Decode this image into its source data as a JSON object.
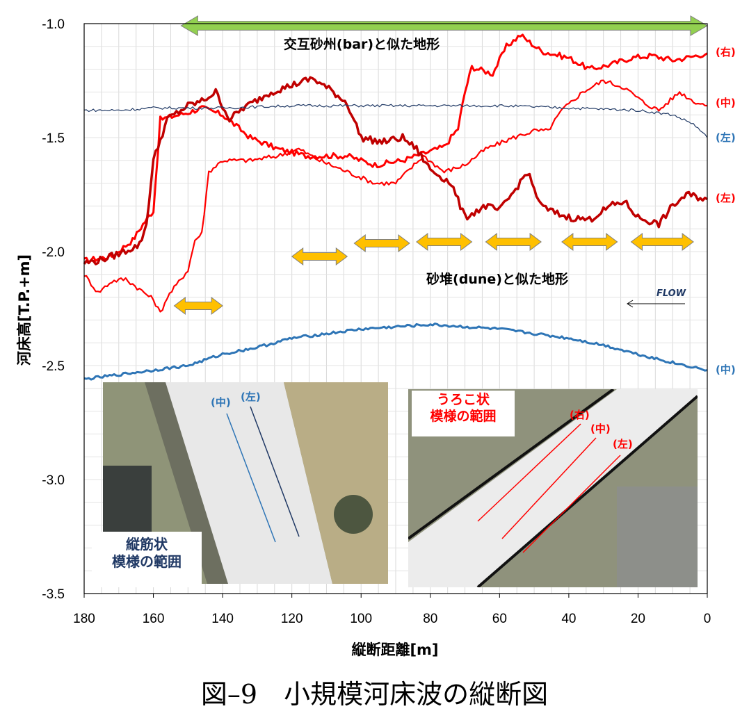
{
  "chart_data": {
    "type": "line",
    "xlabel": "縦断距離[m]",
    "ylabel": "河床高[T.P.+m]",
    "xlim": [
      180,
      0
    ],
    "ylim": [
      -3.5,
      -1.0
    ],
    "x_ticks": [
      "180",
      "160",
      "140",
      "120",
      "100",
      "80",
      "60",
      "40",
      "20",
      "0"
    ],
    "y_ticks": [
      "-1.0",
      "-1.5",
      "-2.0",
      "-2.5",
      "-3.0",
      "-3.5"
    ],
    "grid": "vertical and horizontal gridlines",
    "series": [
      {
        "name": "(右)",
        "color": "#ff0000",
        "points": [
          [
            180,
            -2.04
          ],
          [
            172,
            -2.02
          ],
          [
            166,
            -1.95
          ],
          [
            163,
            -1.88
          ],
          [
            160,
            -1.82
          ],
          [
            158,
            -1.42
          ],
          [
            150,
            -1.39
          ],
          [
            146,
            -1.37
          ],
          [
            140,
            -1.4
          ],
          [
            136,
            -1.45
          ],
          [
            132,
            -1.5
          ],
          [
            124,
            -1.55
          ],
          [
            116,
            -1.58
          ],
          [
            110,
            -1.58
          ],
          [
            104,
            -1.58
          ],
          [
            96,
            -1.62
          ],
          [
            88,
            -1.6
          ],
          [
            84,
            -1.58
          ],
          [
            80,
            -1.56
          ],
          [
            76,
            -1.54
          ],
          [
            72,
            -1.46
          ],
          [
            70,
            -1.3
          ],
          [
            68,
            -1.19
          ],
          [
            62,
            -1.22
          ],
          [
            58,
            -1.1
          ],
          [
            54,
            -1.05
          ],
          [
            48,
            -1.12
          ],
          [
            40,
            -1.15
          ],
          [
            34,
            -1.2
          ],
          [
            28,
            -1.18
          ],
          [
            22,
            -1.15
          ],
          [
            16,
            -1.14
          ],
          [
            10,
            -1.16
          ],
          [
            6,
            -1.15
          ],
          [
            0,
            -1.13
          ]
        ]
      },
      {
        "name": "(中)",
        "color": "#ff0000",
        "points": [
          [
            180,
            -2.1
          ],
          [
            176,
            -2.18
          ],
          [
            172,
            -2.13
          ],
          [
            168,
            -2.12
          ],
          [
            160,
            -2.21
          ],
          [
            158,
            -2.27
          ],
          [
            156,
            -2.2
          ],
          [
            150,
            -2.08
          ],
          [
            148,
            -1.95
          ],
          [
            146,
            -1.92
          ],
          [
            144,
            -1.65
          ],
          [
            140,
            -1.6
          ],
          [
            132,
            -1.6
          ],
          [
            124,
            -1.58
          ],
          [
            118,
            -1.55
          ],
          [
            112,
            -1.6
          ],
          [
            104,
            -1.65
          ],
          [
            96,
            -1.7
          ],
          [
            90,
            -1.7
          ],
          [
            82,
            -1.58
          ],
          [
            76,
            -1.65
          ],
          [
            70,
            -1.62
          ],
          [
            64,
            -1.55
          ],
          [
            56,
            -1.5
          ],
          [
            50,
            -1.47
          ],
          [
            46,
            -1.47
          ],
          [
            42,
            -1.38
          ],
          [
            36,
            -1.3
          ],
          [
            30,
            -1.25
          ],
          [
            24,
            -1.28
          ],
          [
            18,
            -1.35
          ],
          [
            14,
            -1.38
          ],
          [
            8,
            -1.3
          ],
          [
            4,
            -1.34
          ],
          [
            0,
            -1.36
          ]
        ]
      },
      {
        "name": "(左)",
        "color": "#c00000",
        "points": [
          [
            180,
            -2.05
          ],
          [
            176,
            -2.04
          ],
          [
            170,
            -2.01
          ],
          [
            164,
            -1.97
          ],
          [
            162,
            -1.88
          ],
          [
            160,
            -1.6
          ],
          [
            156,
            -1.42
          ],
          [
            150,
            -1.36
          ],
          [
            146,
            -1.34
          ],
          [
            142,
            -1.3
          ],
          [
            138,
            -1.42
          ],
          [
            134,
            -1.37
          ],
          [
            126,
            -1.3
          ],
          [
            120,
            -1.27
          ],
          [
            114,
            -1.24
          ],
          [
            108,
            -1.3
          ],
          [
            104,
            -1.35
          ],
          [
            100,
            -1.5
          ],
          [
            94,
            -1.52
          ],
          [
            88,
            -1.5
          ],
          [
            84,
            -1.55
          ],
          [
            80,
            -1.64
          ],
          [
            74,
            -1.7
          ],
          [
            70,
            -1.85
          ],
          [
            64,
            -1.8
          ],
          [
            60,
            -1.82
          ],
          [
            56,
            -1.74
          ],
          [
            52,
            -1.65
          ],
          [
            48,
            -1.8
          ],
          [
            44,
            -1.83
          ],
          [
            40,
            -1.85
          ],
          [
            34,
            -1.86
          ],
          [
            28,
            -1.8
          ],
          [
            24,
            -1.78
          ],
          [
            20,
            -1.85
          ],
          [
            14,
            -1.88
          ],
          [
            10,
            -1.8
          ],
          [
            6,
            -1.75
          ],
          [
            0,
            -1.77
          ]
        ]
      },
      {
        "name": "(左)",
        "color": "#1f3864",
        "points": [
          [
            180,
            -1.38
          ],
          [
            170,
            -1.38
          ],
          [
            160,
            -1.37
          ],
          [
            150,
            -1.37
          ],
          [
            140,
            -1.37
          ],
          [
            120,
            -1.36
          ],
          [
            100,
            -1.36
          ],
          [
            80,
            -1.36
          ],
          [
            60,
            -1.36
          ],
          [
            40,
            -1.37
          ],
          [
            20,
            -1.38
          ],
          [
            10,
            -1.4
          ],
          [
            4,
            -1.44
          ],
          [
            0,
            -1.5
          ]
        ]
      },
      {
        "name": "(中)",
        "color": "#2e75b6",
        "points": [
          [
            180,
            -2.56
          ],
          [
            170,
            -2.54
          ],
          [
            160,
            -2.52
          ],
          [
            150,
            -2.5
          ],
          [
            140,
            -2.45
          ],
          [
            130,
            -2.42
          ],
          [
            120,
            -2.38
          ],
          [
            110,
            -2.36
          ],
          [
            100,
            -2.34
          ],
          [
            90,
            -2.33
          ],
          [
            80,
            -2.32
          ],
          [
            70,
            -2.33
          ],
          [
            60,
            -2.34
          ],
          [
            50,
            -2.36
          ],
          [
            40,
            -2.38
          ],
          [
            30,
            -2.41
          ],
          [
            20,
            -2.45
          ],
          [
            12,
            -2.48
          ],
          [
            6,
            -2.5
          ],
          [
            0,
            -2.52
          ]
        ]
      }
    ],
    "annotations": [
      {
        "text": "交互砂州(bar)と似た地形",
        "arrow_color": "#92d050",
        "x_range": [
          152,
          0
        ]
      },
      {
        "text": "砂堆(dune)と似た地形",
        "arrow_color": "#ffc000",
        "x_ranges": [
          [
            154,
            140
          ],
          [
            120,
            104
          ],
          [
            102,
            86
          ],
          [
            84,
            68
          ],
          [
            64,
            48
          ],
          [
            42,
            26
          ],
          [
            22,
            4
          ]
        ]
      },
      {
        "text": "FLOW",
        "direction": "toward x=0"
      }
    ]
  },
  "right_labels": {
    "r_right": "(右)",
    "r_mid": "(中)",
    "b_left": "(左)",
    "r_left": "(左)",
    "b_mid": "(中)"
  },
  "annotations": {
    "bar_text": "交互砂州(bar)と似た地形",
    "dune_text": "砂堆(dune)と似た地形",
    "flow_text": "FLOW"
  },
  "inset_left": {
    "line_mid": "(中)",
    "line_left": "(左)",
    "label_line1": "縦筋状",
    "label_line2": "模様の範囲"
  },
  "inset_right": {
    "line_right": "(右)",
    "line_mid": "(中)",
    "line_left": "(左)",
    "label_line1": "うろこ状",
    "label_line2": "模様の範囲"
  },
  "caption": "図–9　小規模河床波の縦断図",
  "colors": {
    "red": "#ff0000",
    "dark_red": "#c00000",
    "navy": "#1f3864",
    "blue": "#2e75b6",
    "green_arrow": "#92d050",
    "orange_arrow": "#ffc000"
  }
}
